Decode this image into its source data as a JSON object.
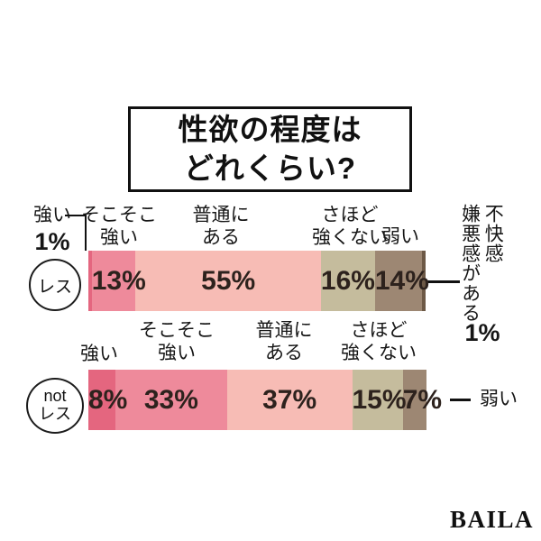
{
  "title": {
    "line1": "性欲の程度は",
    "line2": "どれくらい?"
  },
  "brand_logo": "BAILA",
  "chart_data": {
    "type": "bar",
    "variant": "stacked-horizontal",
    "unit": "%",
    "title": "性欲の程度はどれくらい?",
    "categories": [
      "強い",
      "そこそこ強い",
      "普通にある",
      "さほど強くない",
      "弱い",
      "不快感・嫌悪感がある"
    ],
    "colors": [
      "#e4667f",
      "#ee8a9b",
      "#f7bcb5",
      "#c5bc9d",
      "#9d8773",
      "#6d5946"
    ],
    "series": [
      {
        "name": "レス",
        "values": [
          1,
          13,
          55,
          16,
          14,
          1
        ],
        "inline_labels": [
          null,
          "13%",
          "55%",
          "16%",
          "14%",
          null
        ]
      },
      {
        "name": "not レス",
        "values": [
          8,
          33,
          37,
          15,
          7,
          0
        ],
        "inline_labels": [
          "8%",
          "33%",
          "37%",
          "15%",
          "7%",
          null
        ]
      }
    ],
    "xlim": [
      0,
      100
    ],
    "legend": "none",
    "grid": false
  },
  "row1": {
    "group": "レス",
    "labels": {
      "strong": "強い",
      "strong_value": "1%",
      "somewhat": [
        "そこそこ",
        "強い"
      ],
      "normal": [
        "普通に",
        "ある"
      ],
      "not_so": [
        "さほど",
        "強くない"
      ],
      "weak": "弱い",
      "disgust_col1": "不快感",
      "disgust_col2": "嫌悪感がある",
      "disgust_value": "1%"
    }
  },
  "row2": {
    "group_line1": "not",
    "group_line2": "レス",
    "labels": {
      "strong": "強い",
      "somewhat": [
        "そこそこ",
        "強い"
      ],
      "normal": [
        "普通に",
        "ある"
      ],
      "not_so": [
        "さほど",
        "強くない"
      ],
      "weak": "弱い"
    }
  }
}
